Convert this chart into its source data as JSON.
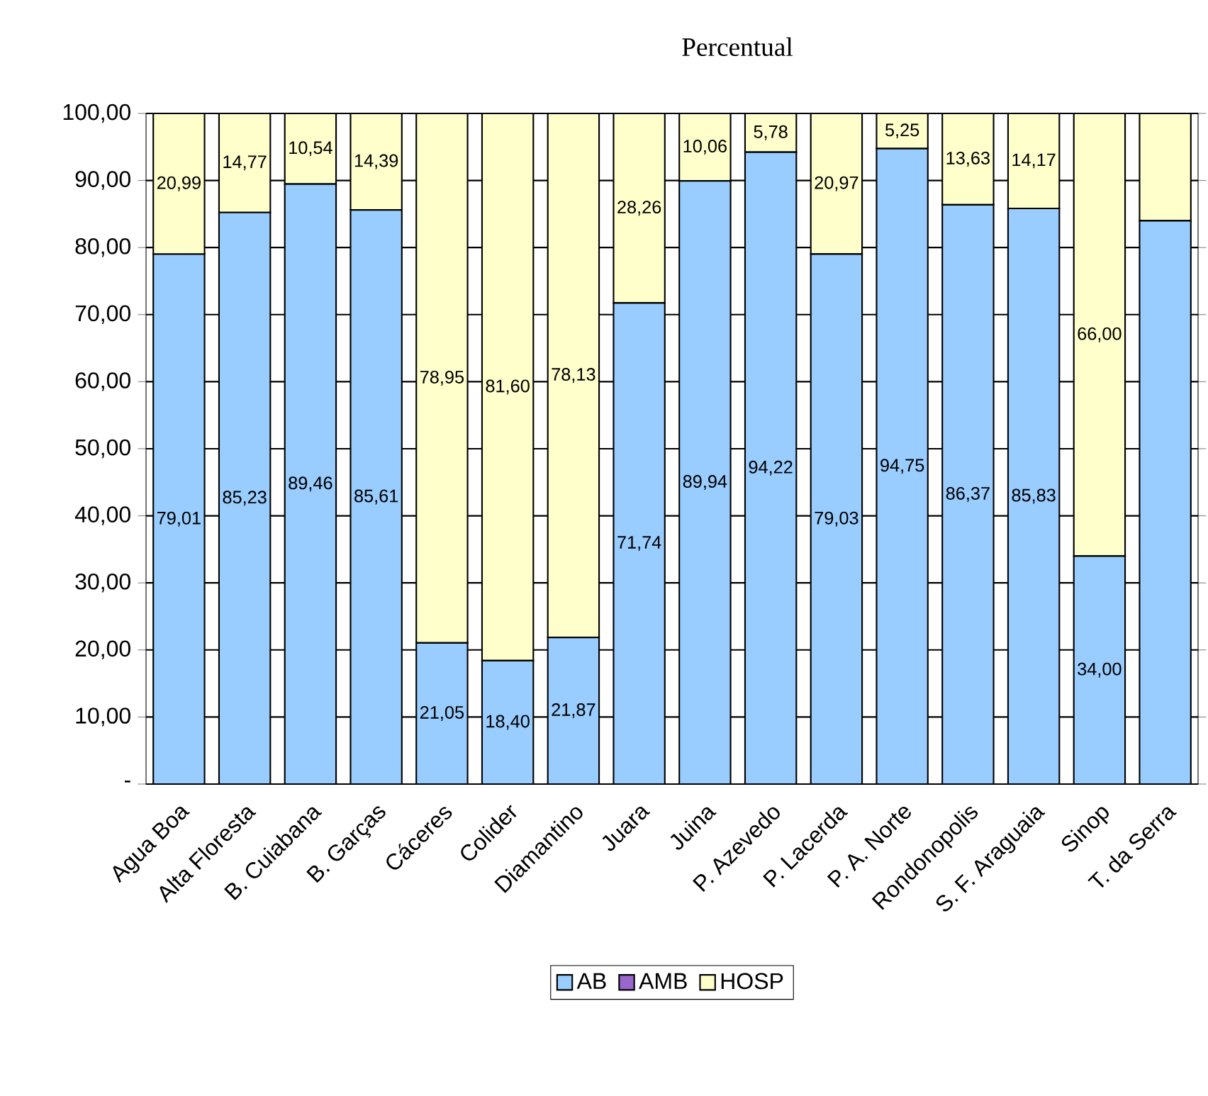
{
  "chart_data": {
    "type": "bar",
    "title": "Percentual",
    "stacked": true,
    "legend": "bottom",
    "grid": "y",
    "categories": [
      "Agua Boa",
      "Alta Floresta",
      "B. Cuiabana",
      "B. Garças",
      "Cáceres",
      "Colider",
      "Diamantino",
      "Juara",
      "Juina",
      "P. Azevedo",
      "P. Lacerda",
      "P. A. Norte",
      "Rondonopolis",
      "S. F. Araguaia",
      "Sinop",
      "T. da Serra"
    ],
    "ylim": [
      0,
      100
    ],
    "yticks": [
      {
        "value": 0,
        "label": "-"
      },
      {
        "value": 10,
        "label": "10,00"
      },
      {
        "value": 20,
        "label": "20,00"
      },
      {
        "value": 30,
        "label": "30,00"
      },
      {
        "value": 40,
        "label": "40,00"
      },
      {
        "value": 50,
        "label": "50,00"
      },
      {
        "value": 60,
        "label": "60,00"
      },
      {
        "value": 70,
        "label": "70,00"
      },
      {
        "value": 80,
        "label": "80,00"
      },
      {
        "value": 90,
        "label": "90,00"
      },
      {
        "value": 100,
        "label": "100,00"
      }
    ],
    "series": [
      {
        "name": "AB",
        "color": "#99ccff",
        "values": [
          79.01,
          85.23,
          89.46,
          85.61,
          21.05,
          18.4,
          21.87,
          71.74,
          89.94,
          94.22,
          79.03,
          94.75,
          86.37,
          85.83,
          34.0,
          84
        ],
        "value_labels": [
          "79,01",
          "85,23",
          "89,46",
          "85,61",
          "21,05",
          "18,40",
          "21,87",
          "71,74",
          "89,94",
          "94,22",
          "79,03",
          "94,75",
          "86,37",
          "85,83",
          "34,00",
          null
        ]
      },
      {
        "name": "AMB",
        "color": "#9966cc",
        "values": [
          0,
          0,
          0,
          0,
          0,
          0,
          0,
          0,
          0,
          0,
          0,
          0,
          0,
          0,
          0,
          0
        ]
      },
      {
        "name": "HOSP",
        "color": "#ffffcc",
        "values": [
          20.99,
          14.77,
          10.54,
          14.39,
          78.95,
          81.6,
          78.13,
          28.26,
          10.06,
          5.78,
          20.97,
          5.25,
          13.63,
          14.17,
          66.0,
          16
        ],
        "value_labels": [
          "20,99",
          "14,77",
          "10,54",
          "14,39",
          "78,95",
          "81,60",
          "78,13",
          "28,26",
          "10,06",
          "5,78",
          "20,97",
          "5,25",
          "13,63",
          "14,17",
          "66,00",
          null
        ]
      }
    ]
  }
}
